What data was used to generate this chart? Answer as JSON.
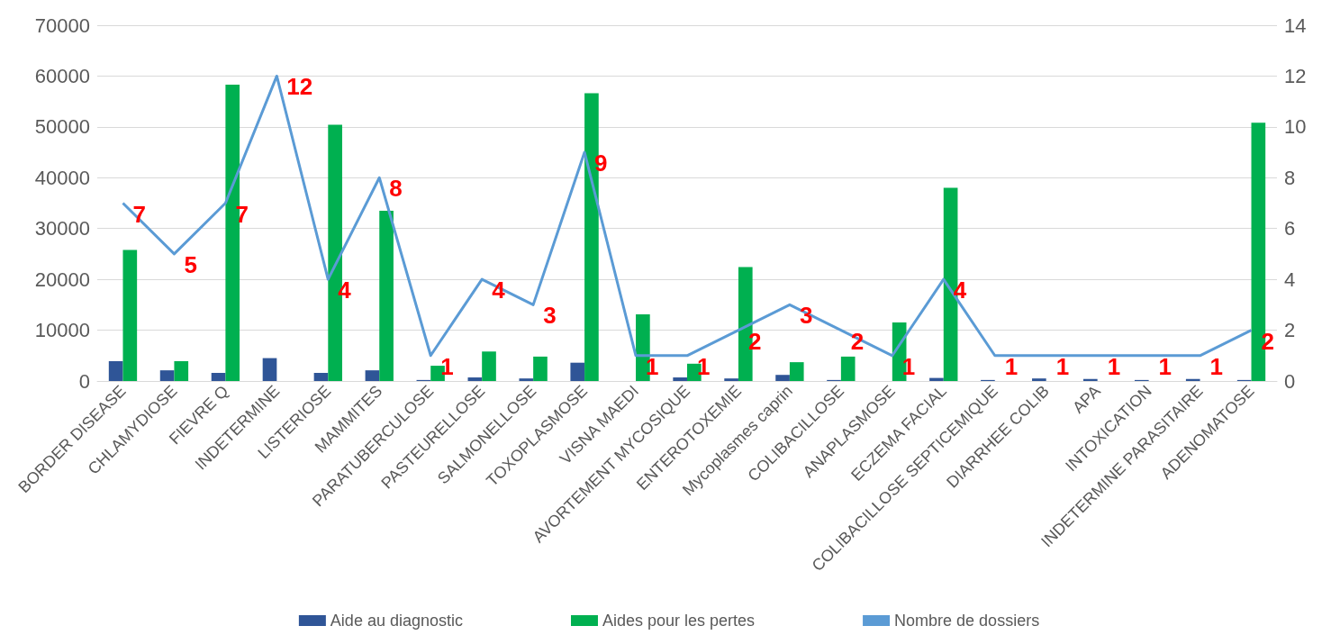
{
  "chart_data": {
    "type": "bar",
    "categories": [
      "BORDER DISEASE",
      "CHLAMYDIOSE",
      "FIEVRE Q",
      "INDETERMINE",
      "LISTERIOSE",
      "MAMMITES",
      "PARATUBERCULOSE",
      "PASTEURELLOSE",
      "SALMONELLOSE",
      "TOXOPLASMOSE",
      "VISNA MAEDI",
      "AVORTEMENT MYCOSIQUE",
      "ENTEROTOXEMIE",
      "Mycoplasmes caprin",
      "COLIBACILLOSE",
      "ANAPLASMOSE",
      "ECZEMA FACIAL",
      "COLIBACILLOSE SEPTICEMIQUE",
      "DIARRHEE COLIB",
      "APA",
      "INTOXICATION",
      "INDETERMINE PARASITAIRE",
      "ADENOMATOSE"
    ],
    "series": [
      {
        "name": "Aide au diagnostic",
        "color": "#2f5597",
        "values": [
          3900,
          2100,
          1600,
          4500,
          1600,
          2100,
          200,
          700,
          500,
          3600,
          0,
          700,
          500,
          1200,
          200,
          0,
          600,
          200,
          500,
          400,
          200,
          400,
          200
        ]
      },
      {
        "name": "Aides pour les pertes",
        "color": "#00b050",
        "values": [
          25800,
          3900,
          58300,
          0,
          50400,
          33500,
          3000,
          5800,
          4800,
          56600,
          13100,
          3400,
          22400,
          3700,
          4800,
          11500,
          38000,
          0,
          0,
          0,
          0,
          0,
          50800
        ]
      },
      {
        "name": "Nombre de dossiers",
        "type": "line",
        "axis": "y2",
        "color": "#5b9bd5",
        "data_labels": true,
        "values": [
          7,
          5,
          7,
          12,
          4,
          8,
          1,
          4,
          3,
          9,
          1,
          1,
          2,
          3,
          2,
          1,
          4,
          1,
          1,
          1,
          1,
          1,
          2
        ]
      }
    ],
    "ylim": [
      0,
      70000
    ],
    "yticks": [
      0,
      10000,
      20000,
      30000,
      40000,
      50000,
      60000,
      70000
    ],
    "y2lim": [
      0,
      14
    ],
    "y2ticks": [
      0,
      2,
      4,
      6,
      8,
      10,
      12,
      14
    ],
    "grid": "y",
    "legend": "bottom",
    "marker": "none"
  }
}
